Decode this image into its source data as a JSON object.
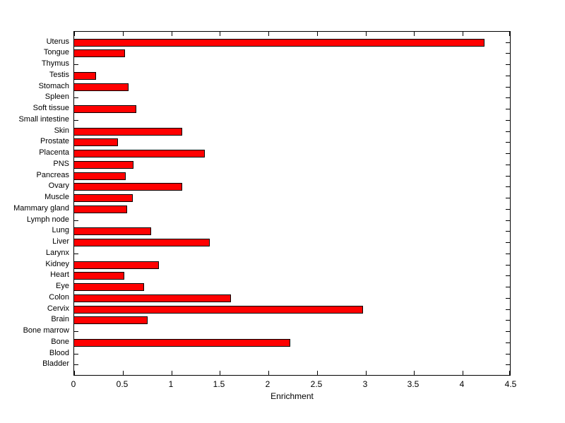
{
  "chart_data": {
    "type": "bar",
    "orientation": "horizontal",
    "title": "",
    "xlabel": "Enrichment",
    "ylabel": "",
    "xlim": [
      0,
      4.5
    ],
    "ylim_slots": 31,
    "xticks": [
      0,
      0.5,
      1,
      1.5,
      2,
      2.5,
      3,
      3.5,
      4,
      4.5
    ],
    "xtick_labels": [
      "0",
      "0.5",
      "1",
      "1.5",
      "2",
      "2.5",
      "3",
      "3.5",
      "4",
      "4.5"
    ],
    "grid": false,
    "legend": null,
    "bar_color": "#ff0000",
    "bar_edge_color": "#000000",
    "axis_color": "#000000",
    "background_color": "#ffffff",
    "categories": [
      "Uterus",
      "Tongue",
      "Thymus",
      "Testis",
      "Stomach",
      "Spleen",
      "Soft tissue",
      "Small intestine",
      "Skin",
      "Prostate",
      "Placenta",
      "PNS",
      "Pancreas",
      "Ovary",
      "Muscle",
      "Mammary gland",
      "Lymph node",
      "Lung",
      "Liver",
      "Larynx",
      "Kidney",
      "Heart",
      "Eye",
      "Colon",
      "Cervix",
      "Brain",
      "Bone marrow",
      "Bone",
      "Blood",
      "Bladder"
    ],
    "values": [
      4.23,
      0.53,
      0,
      0.23,
      0.57,
      0,
      0.65,
      0,
      1.12,
      0.46,
      1.35,
      0.62,
      0.54,
      1.12,
      0.61,
      0.55,
      0,
      0.8,
      1.4,
      0,
      0.88,
      0.52,
      0.73,
      1.62,
      2.98,
      0.76,
      0,
      2.23,
      0,
      0
    ]
  }
}
